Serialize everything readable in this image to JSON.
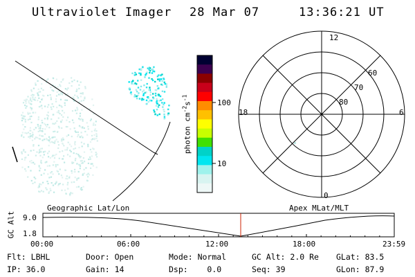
{
  "header": {
    "instrument": "Ultraviolet Imager",
    "date": "28 Mar 07",
    "time": "13:36:21 UT"
  },
  "colorbar": {
    "unit_label": "photon cm",
    "unit_exp1": "-2",
    "unit_s": "s",
    "unit_exp2": "-1",
    "ticks": [
      "100",
      "10"
    ],
    "colors": [
      "#000032",
      "#3c004f",
      "#8b0000",
      "#c8001a",
      "#ff0000",
      "#ff8c00",
      "#ffc000",
      "#ffff00",
      "#c8ff00",
      "#40e000",
      "#00d2c8",
      "#00e6f0",
      "#9ff2ec",
      "#d8f4f1",
      "#eef8f7"
    ],
    "scale": "log"
  },
  "polar": {
    "mlt_labels": {
      "top": "12",
      "left": "18",
      "right": "6",
      "bottom": "0"
    },
    "lat_labels": [
      "60",
      "70",
      "80"
    ]
  },
  "timeline": {
    "y_axis_label": "GC Alt",
    "y_ticks": [
      "9.0",
      "1.8"
    ],
    "left_title": "Geographic Lat/Lon",
    "right_title": "Apex MLat/MLT",
    "x_ticks": [
      "00:00",
      "06:00",
      "12:00",
      "18:00",
      "23:59"
    ],
    "current_marker_color": "#cc2200"
  },
  "status": {
    "row1": [
      {
        "label": "Flt:",
        "value": "LBHL"
      },
      {
        "label": "Door:",
        "value": "Open"
      },
      {
        "label": "Mode:",
        "value": "Normal"
      },
      {
        "label": "GC Alt:",
        "value": "2.0 Re"
      },
      {
        "label": "GLat:",
        "value": "83.5"
      }
    ],
    "row2": [
      {
        "label": "IP:",
        "value": "36.0"
      },
      {
        "label": "Gain:",
        "value": "14"
      },
      {
        "label": "Dsp:",
        "value": "0.0"
      },
      {
        "label": "Seq:",
        "value": "39"
      },
      {
        "label": "GLon:",
        "value": "87.9"
      }
    ]
  }
}
